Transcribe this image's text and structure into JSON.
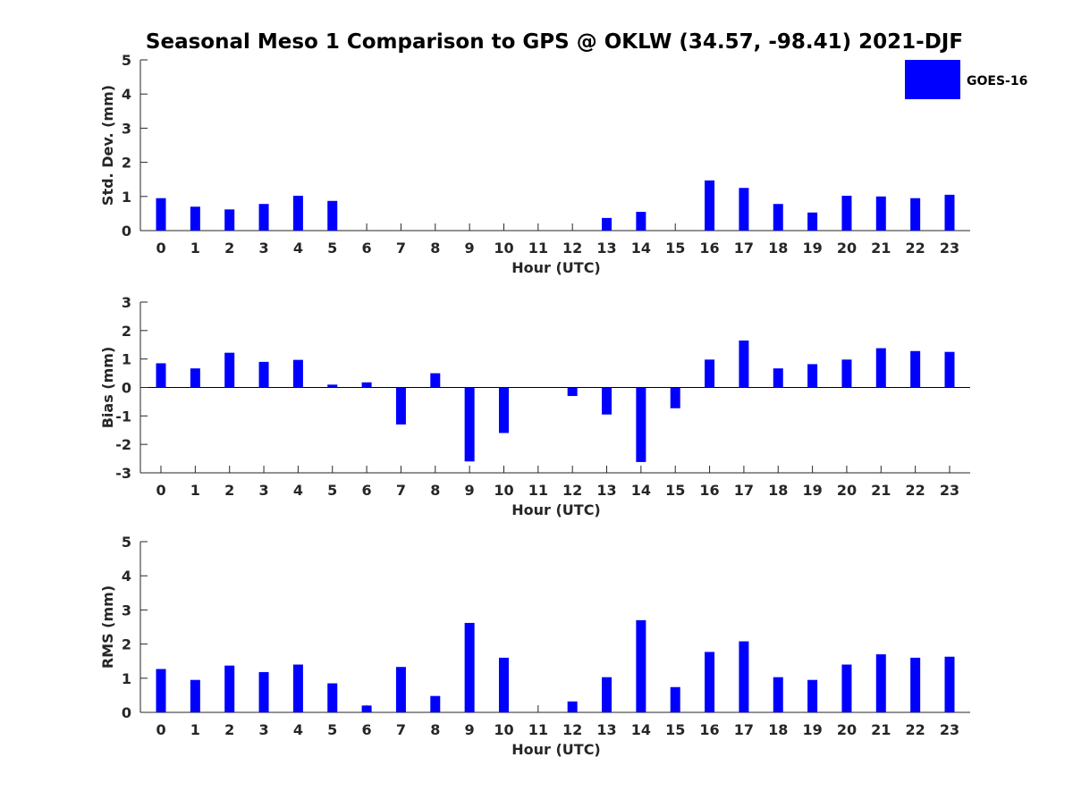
{
  "chart_data": {
    "title": "Seasonal Meso 1 Comparison to GPS @ OKLW (34.57, -98.41) 2021-DJF",
    "legend": {
      "placement": "top-right",
      "entries": [
        {
          "name": "GOES-16",
          "color": "#0000ff"
        }
      ]
    },
    "bar_color": "#0000ff",
    "charts": [
      {
        "type": "bar",
        "xlabel": "Hour (UTC)",
        "ylabel": "Std. Dev. (mm)",
        "ylim": [
          0,
          5
        ],
        "yticks": [
          "0",
          "1",
          "2",
          "3",
          "4",
          "5"
        ],
        "categories": [
          "0",
          "1",
          "2",
          "3",
          "4",
          "5",
          "6",
          "7",
          "8",
          "9",
          "10",
          "11",
          "12",
          "13",
          "14",
          "15",
          "16",
          "17",
          "18",
          "19",
          "20",
          "21",
          "22",
          "23"
        ],
        "series": [
          {
            "name": "GOES-16",
            "values": [
              0.95,
              0.7,
              0.62,
              0.78,
              1.02,
              0.87,
              0,
              0,
              0,
              0,
              0,
              0,
              0,
              0.37,
              0.55,
              0,
              1.47,
              1.25,
              0.78,
              0.53,
              1.02,
              1.0,
              0.95,
              1.05
            ]
          }
        ]
      },
      {
        "type": "bar",
        "xlabel": "Hour (UTC)",
        "ylabel": "Bias (mm)",
        "ylim": [
          -3,
          3
        ],
        "yticks": [
          "-3",
          "-2",
          "-1",
          "0",
          "1",
          "2",
          "3"
        ],
        "categories": [
          "0",
          "1",
          "2",
          "3",
          "4",
          "5",
          "6",
          "7",
          "8",
          "9",
          "10",
          "11",
          "12",
          "13",
          "14",
          "15",
          "16",
          "17",
          "18",
          "19",
          "20",
          "21",
          "22",
          "23"
        ],
        "series": [
          {
            "name": "GOES-16",
            "values": [
              0.85,
              0.67,
              1.22,
              0.9,
              0.97,
              0.1,
              0.18,
              -1.3,
              0.5,
              -2.6,
              -1.6,
              0,
              -0.3,
              -0.95,
              -2.62,
              -0.73,
              0.98,
              1.65,
              0.67,
              0.82,
              0.98,
              1.38,
              1.28,
              1.25
            ]
          }
        ]
      },
      {
        "type": "bar",
        "xlabel": "Hour (UTC)",
        "ylabel": "RMS (mm)",
        "ylim": [
          0,
          5
        ],
        "yticks": [
          "0",
          "1",
          "2",
          "3",
          "4",
          "5"
        ],
        "categories": [
          "0",
          "1",
          "2",
          "3",
          "4",
          "5",
          "6",
          "7",
          "8",
          "9",
          "10",
          "11",
          "12",
          "13",
          "14",
          "15",
          "16",
          "17",
          "18",
          "19",
          "20",
          "21",
          "22",
          "23"
        ],
        "series": [
          {
            "name": "GOES-16",
            "values": [
              1.27,
              0.95,
              1.37,
              1.18,
              1.4,
              0.85,
              0.2,
              1.33,
              0.48,
              2.62,
              1.6,
              0,
              0.32,
              1.03,
              2.7,
              0.74,
              1.77,
              2.08,
              1.03,
              0.95,
              1.4,
              1.7,
              1.6,
              1.63
            ]
          }
        ]
      }
    ]
  }
}
